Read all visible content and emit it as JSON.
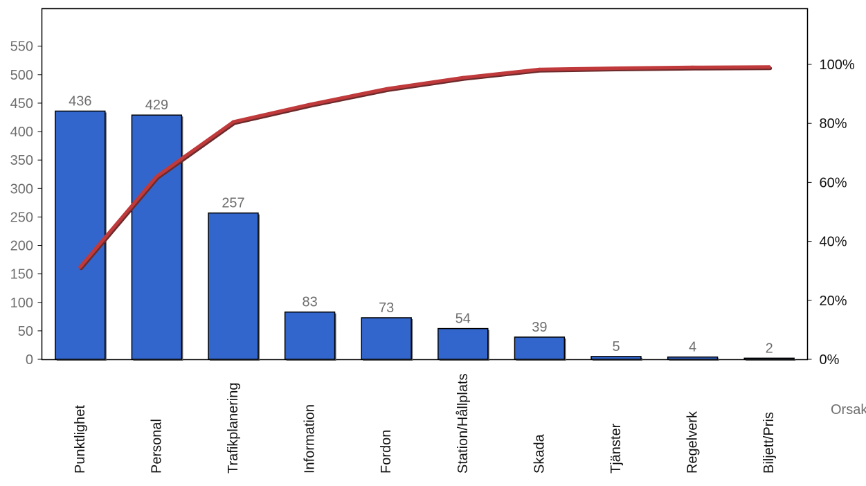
{
  "chart_data": {
    "type": "bar",
    "title": "",
    "xlabel": "Orsak",
    "ylabel": "",
    "categories": [
      "Punktlighet",
      "Personal",
      "Trafikplanering",
      "Information",
      "Fordon",
      "Station/Hållplats",
      "Skada",
      "Tjänster",
      "Regelverk",
      "Biljett/Pris"
    ],
    "series": [
      {
        "type": "bar",
        "values": [
          436,
          429,
          257,
          83,
          73,
          54,
          39,
          5,
          4,
          2
        ],
        "color": "#3366CC"
      },
      {
        "type": "line",
        "axis": "right",
        "values": [
          31.3,
          62.0,
          80.5,
          86.4,
          91.7,
          95.5,
          98.3,
          98.7,
          99.0,
          99.1
        ],
        "color": "#C0393B"
      }
    ],
    "ylim": [
      0,
      600
    ],
    "yticks": [
      "0",
      "50",
      "100",
      "150",
      "200",
      "250",
      "300",
      "350",
      "400",
      "450",
      "500",
      "550"
    ],
    "y2lim": [
      0,
      120
    ],
    "y2ticks": [
      "0%",
      "20%",
      "40%",
      "60%",
      "80%",
      "100%"
    ],
    "data_labels": [
      "436",
      "429",
      "257",
      "83",
      "73",
      "54",
      "39",
      "5",
      "4",
      "2"
    ],
    "grid": false,
    "legend": "none"
  }
}
